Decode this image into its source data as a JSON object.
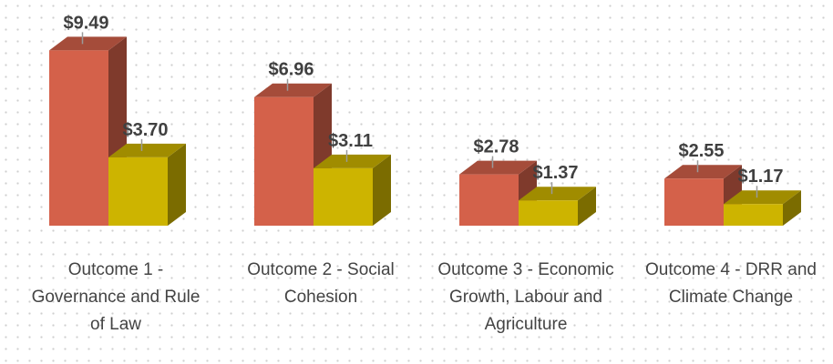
{
  "chart_data": {
    "type": "bar3d",
    "categories": [
      "Outcome 1 - Governance and Rule of Law",
      "Outcome 2 - Social Cohesion",
      "Outcome 3 - Economic Growth, Labour and Agriculture",
      "Outcome 4 - DRR and Climate Change"
    ],
    "series": [
      {
        "color": "#d4614a",
        "values": [
          9.49,
          6.96,
          2.78,
          2.55
        ],
        "value_labels": [
          "$9.49",
          "$6.96",
          "$2.78",
          "$2.55"
        ]
      },
      {
        "color": "#cdb400",
        "values": [
          3.7,
          3.11,
          1.37,
          1.17
        ],
        "value_labels": [
          "$3.70",
          "$3.11",
          "$1.37",
          "$1.17"
        ]
      }
    ]
  }
}
